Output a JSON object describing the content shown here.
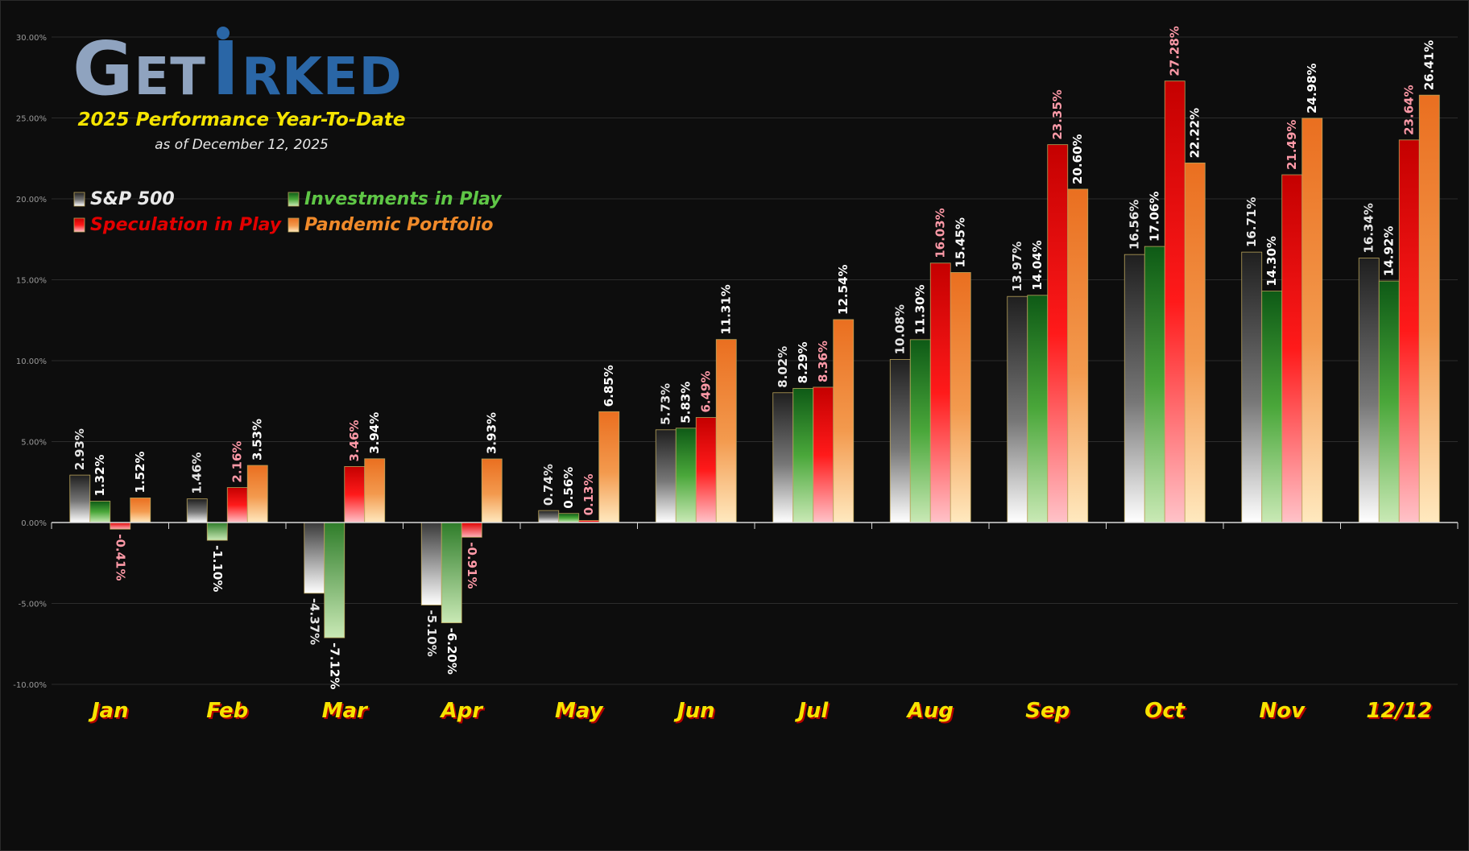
{
  "brand": {
    "logo_part1": "Get",
    "logo_part2": "I",
    "logo_part3": "rked",
    "title": "2025 Performance Year-To-Date",
    "subtitle": "as of December 12, 2025"
  },
  "colors": {
    "background": "#0d0d0d",
    "title": "#f5e400",
    "month_label": "#f7e300",
    "logo_grey": "#8fa3bf",
    "logo_blue": "#2a66a6"
  },
  "chart_data": {
    "type": "bar",
    "categories": [
      "Jan",
      "Feb",
      "Mar",
      "Apr",
      "May",
      "Jun",
      "Jul",
      "Aug",
      "Sep",
      "Oct",
      "Nov",
      "12/12"
    ],
    "ylim": [
      -10,
      30
    ],
    "yticks": [
      -10,
      -5,
      0,
      5,
      10,
      15,
      20,
      25,
      30
    ],
    "ytick_labels": [
      "-10.00%",
      "-5.00%",
      "0.00%",
      "5.00%",
      "10.00%",
      "15.00%",
      "20.00%",
      "25.00%",
      "30.00%"
    ],
    "grid": true,
    "legend_position": "top-left",
    "series": [
      {
        "name": "S&P 500",
        "key": "sp",
        "color": "#777777",
        "values": [
          2.93,
          1.46,
          -4.37,
          -5.1,
          0.74,
          5.73,
          8.02,
          10.08,
          13.97,
          16.56,
          16.71,
          16.34
        ],
        "labels": [
          "2.93%",
          "1.46%",
          "-4.37%",
          "-5.10%",
          "0.74%",
          "5.73%",
          "8.02%",
          "10.08%",
          "13.97%",
          "16.56%",
          "16.71%",
          "16.34%"
        ]
      },
      {
        "name": "Investments in Play",
        "key": "inv",
        "color": "#3c9e2c",
        "values": [
          1.32,
          -1.1,
          -7.12,
          -6.2,
          0.56,
          5.83,
          8.29,
          11.3,
          14.04,
          17.06,
          14.3,
          14.92
        ],
        "labels": [
          "1.32%",
          "-1.10%",
          "-7.12%",
          "-6.20%",
          "0.56%",
          "5.83%",
          "8.29%",
          "11.30%",
          "14.04%",
          "17.06%",
          "14.30%",
          "14.92%"
        ]
      },
      {
        "name": "Speculation in Play",
        "key": "spec",
        "color": "#e50000",
        "values": [
          -0.41,
          2.16,
          3.46,
          -0.91,
          0.13,
          6.49,
          8.36,
          16.03,
          23.35,
          27.28,
          21.49,
          23.64
        ],
        "labels": [
          "-0.41%",
          "2.16%",
          "3.46%",
          "-0.91%",
          "0.13%",
          "6.49%",
          "8.36%",
          "16.03%",
          "23.35%",
          "27.28%",
          "21.49%",
          "23.64%"
        ]
      },
      {
        "name": "Pandemic Portfolio",
        "key": "pan",
        "color": "#f07a1e",
        "values": [
          1.52,
          3.53,
          3.94,
          3.93,
          6.85,
          11.31,
          12.54,
          15.45,
          20.6,
          22.22,
          24.98,
          26.41
        ],
        "labels": [
          "1.52%",
          "3.53%",
          "3.94%",
          "3.93%",
          "6.85%",
          "11.31%",
          "12.54%",
          "15.45%",
          "20.60%",
          "22.22%",
          "24.98%",
          "26.41%"
        ]
      }
    ]
  }
}
